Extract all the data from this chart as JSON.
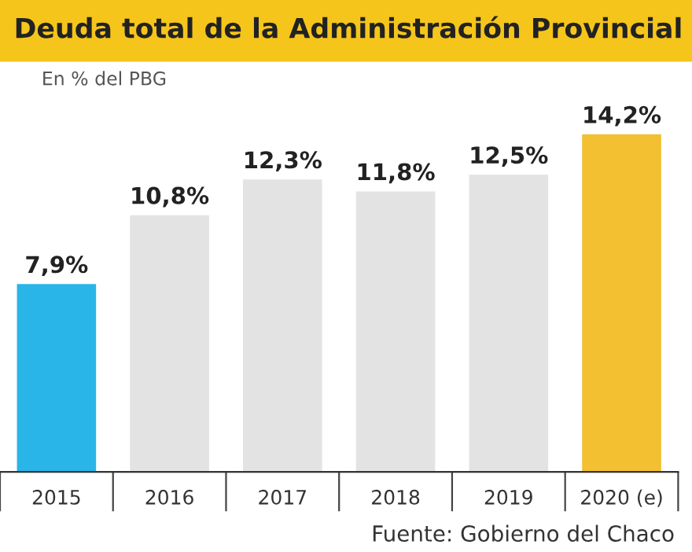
{
  "chart_data": {
    "type": "bar",
    "title": "Deuda total de la Administración Provincial",
    "subtitle": "En % del PBG",
    "categories": [
      "2015",
      "2016",
      "2017",
      "2018",
      "2019",
      "2020 (e)"
    ],
    "values": [
      7.9,
      10.8,
      12.3,
      11.8,
      12.5,
      14.2
    ],
    "colors": [
      "#29b5e8",
      "#e3e3e3",
      "#e3e3e3",
      "#e3e3e3",
      "#e3e3e3",
      "#f2c030"
    ],
    "value_labels": [
      "7,9%",
      "10,8%",
      "12,3%",
      "11,8%",
      "12,5%",
      "14,2%"
    ],
    "grid": false,
    "legend": false,
    "annotations": [
      "Fuente: Gobierno del Chaco"
    ]
  }
}
